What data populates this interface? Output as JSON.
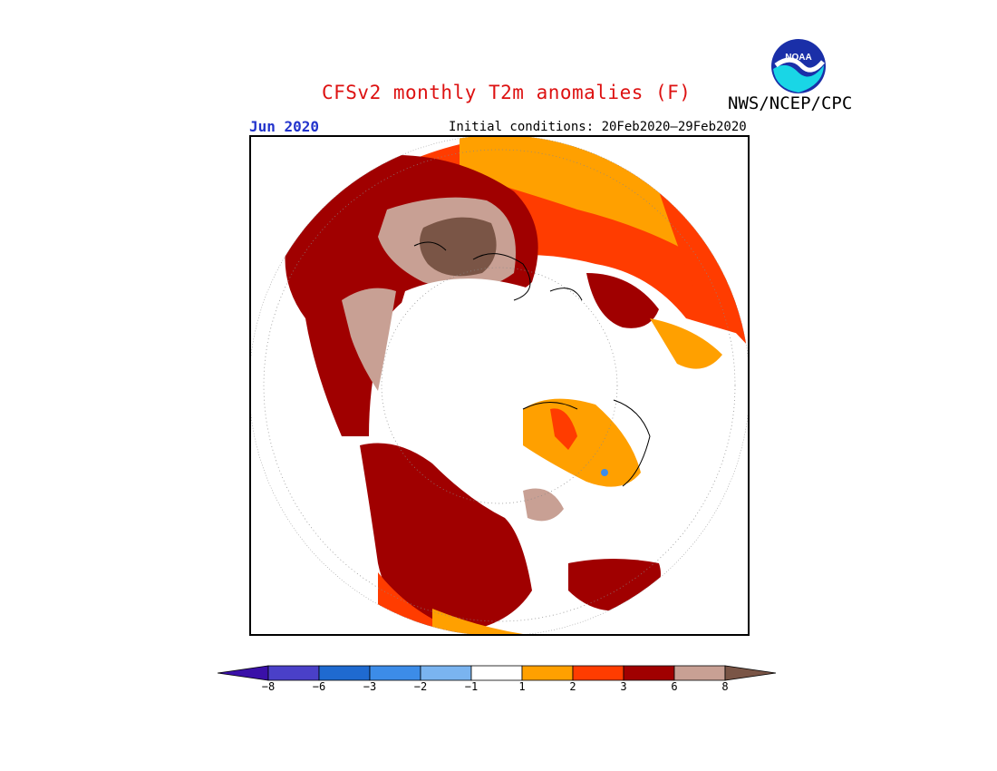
{
  "header": {
    "title": "CFSv2 monthly T2m anomalies (F)",
    "agency": "NWS/NCEP/CPC",
    "logo_text": "NOAA",
    "month": "Jun 2020",
    "initial_conditions": "Initial conditions: 20Feb2020–29Feb2020"
  },
  "colorbar": {
    "ticks": [
      "−8",
      "−6",
      "−3",
      "−2",
      "−1",
      "1",
      "2",
      "3",
      "6",
      "8"
    ],
    "colors": [
      "#3a10a8",
      "#4a40c8",
      "#1f6ad0",
      "#3c8ce8",
      "#7ab4f0",
      "#ffffff",
      "#ffa000",
      "#ff3c00",
      "#a00000",
      "#c8a094",
      "#7a5546"
    ]
  },
  "map_colors": {
    "white": "#ffffff",
    "orange": "#ffa000",
    "red": "#ff3c00",
    "darkred": "#a00000",
    "tan": "#c8a094",
    "brown": "#7a5546",
    "blue": "#3c8ce8"
  }
}
